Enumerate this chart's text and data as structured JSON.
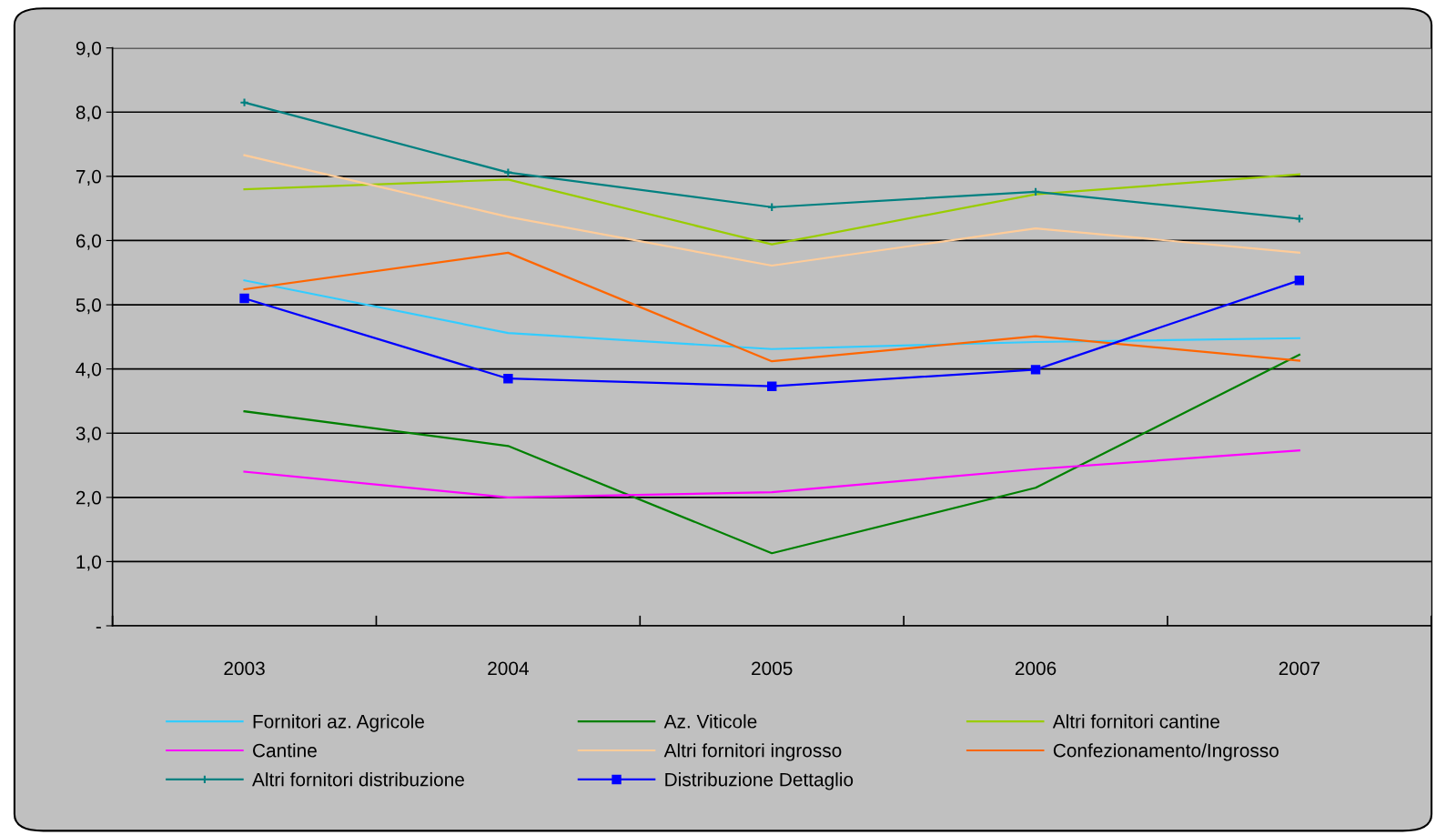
{
  "chart_data": {
    "type": "line",
    "categories": [
      "2003",
      "2004",
      "2005",
      "2006",
      "2007"
    ],
    "ylim": [
      0,
      9
    ],
    "yticks": [
      {
        "value": 0,
        "label": "-"
      },
      {
        "value": 1,
        "label": "1,0"
      },
      {
        "value": 2,
        "label": "2,0"
      },
      {
        "value": 3,
        "label": "3,0"
      },
      {
        "value": 4,
        "label": "4,0"
      },
      {
        "value": 5,
        "label": "5,0"
      },
      {
        "value": 6,
        "label": "6,0"
      },
      {
        "value": 7,
        "label": "7,0"
      },
      {
        "value": 8,
        "label": "8,0"
      },
      {
        "value": 9,
        "label": "9,0"
      }
    ],
    "grid": "y",
    "legend": "bottom",
    "marker": "none",
    "line_style": "solid",
    "series": [
      {
        "name": "Fornitori az. Agricole",
        "color": "#33ccff",
        "values": [
          5.38,
          4.56,
          4.31,
          4.42,
          4.48
        ]
      },
      {
        "name": "Az. Viticole",
        "color": "#008000",
        "values": [
          3.34,
          2.8,
          1.13,
          2.15,
          4.22
        ]
      },
      {
        "name": "Altri fornitori cantine",
        "color": "#99cc00",
        "values": [
          6.8,
          6.95,
          5.94,
          6.72,
          7.03
        ]
      },
      {
        "name": "Cantine",
        "color": "#ff00ff",
        "values": [
          2.4,
          2.0,
          2.08,
          2.44,
          2.73
        ]
      },
      {
        "name": "Altri fornitori ingrosso",
        "color": "#ffcc99",
        "values": [
          7.33,
          6.37,
          5.61,
          6.19,
          5.81
        ]
      },
      {
        "name": "Confezionamento/Ingrosso",
        "color": "#ff6600",
        "values": [
          5.24,
          5.81,
          4.12,
          4.51,
          4.13
        ]
      },
      {
        "name": "Altri fornitori distribuzione",
        "color": "#008080",
        "marker": "cross",
        "values": [
          8.15,
          7.06,
          6.52,
          6.76,
          6.34
        ]
      },
      {
        "name": "Distribuzione Dettaglio",
        "color": "#0000ff",
        "marker": "square",
        "values": [
          5.1,
          3.85,
          3.73,
          3.99,
          5.38
        ]
      }
    ]
  }
}
